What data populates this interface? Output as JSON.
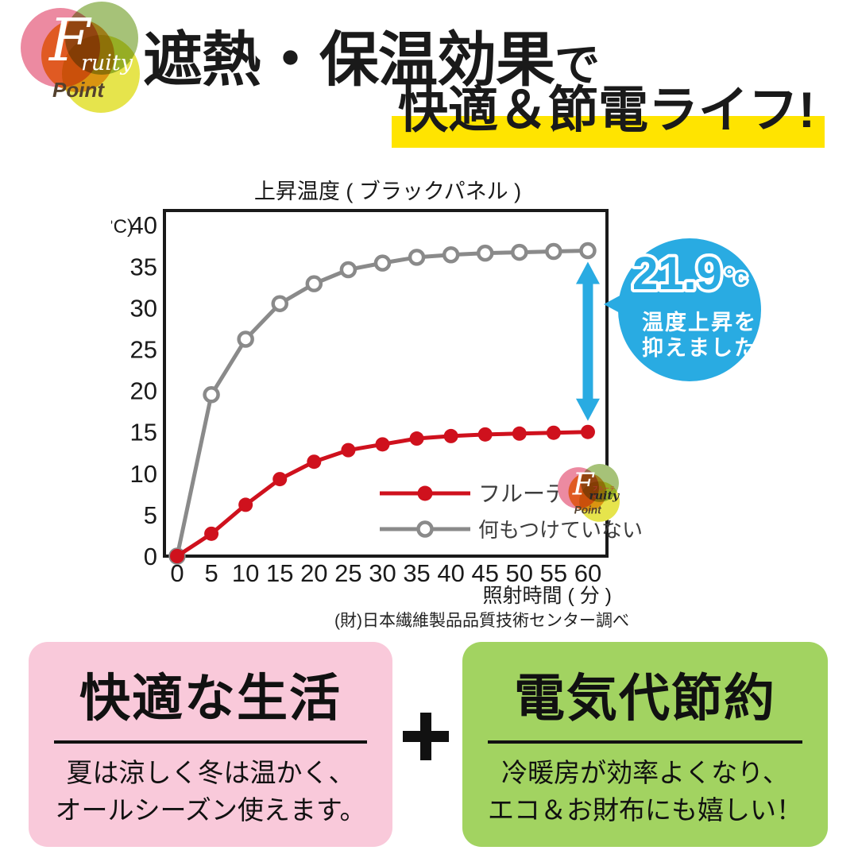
{
  "logo": {
    "initial": "F",
    "name_rest": "ruity",
    "katakana": "フルーティ",
    "tagline": "Point"
  },
  "header": {
    "title_line1_main": "遮熱・保温効果",
    "title_line1_suffix": "で",
    "title_line2": "快適＆節電ライフ!",
    "highlight_color": "#ffe400"
  },
  "chart_data": {
    "type": "line",
    "title": "上昇温度 ( ブラックパネル )",
    "y_unit": "(°C)",
    "xlabel": "照射時間 ( 分 )",
    "source": "(財)日本繊維製品品質技術センター調べ",
    "x": [
      0,
      5,
      10,
      15,
      20,
      25,
      30,
      35,
      40,
      45,
      50,
      55,
      60
    ],
    "ylim": [
      0,
      42
    ],
    "ytick_step": 5,
    "ytick_max": 40,
    "grid": false,
    "legend_position": "inside-bottom-right",
    "series": [
      {
        "name": "フルーティ",
        "color": "#cf111d",
        "marker": "filled",
        "values": [
          0,
          2.7,
          6.2,
          9.3,
          11.4,
          12.8,
          13.5,
          14.2,
          14.5,
          14.7,
          14.8,
          14.9,
          15.0
        ]
      },
      {
        "name": "何もつけていない",
        "color": "#8a8a8a",
        "marker": "open",
        "values": [
          0,
          19.5,
          26.2,
          30.5,
          32.9,
          34.6,
          35.4,
          36.1,
          36.4,
          36.6,
          36.7,
          36.8,
          36.9
        ]
      }
    ],
    "annotation": {
      "type": "difference-arrow",
      "at_x": 60,
      "color": "#29abe2"
    }
  },
  "callout": {
    "value": "21.9",
    "unit": "°c",
    "line1": "温度上昇を",
    "line2": "抑えました！",
    "bg": "#29abe2"
  },
  "cards": {
    "left": {
      "title": "快適な生活",
      "body_line1": "夏は涼しく冬は温かく、",
      "body_line2": "オールシーズン使えます。",
      "bg": "#f9c9da"
    },
    "plus_icon": "+",
    "right": {
      "title": "電気代節約",
      "body_line1": "冷暖房が効率よくなり、",
      "body_line2": "エコ＆お財布にも嬉しい！",
      "bg": "#a2d361"
    }
  }
}
